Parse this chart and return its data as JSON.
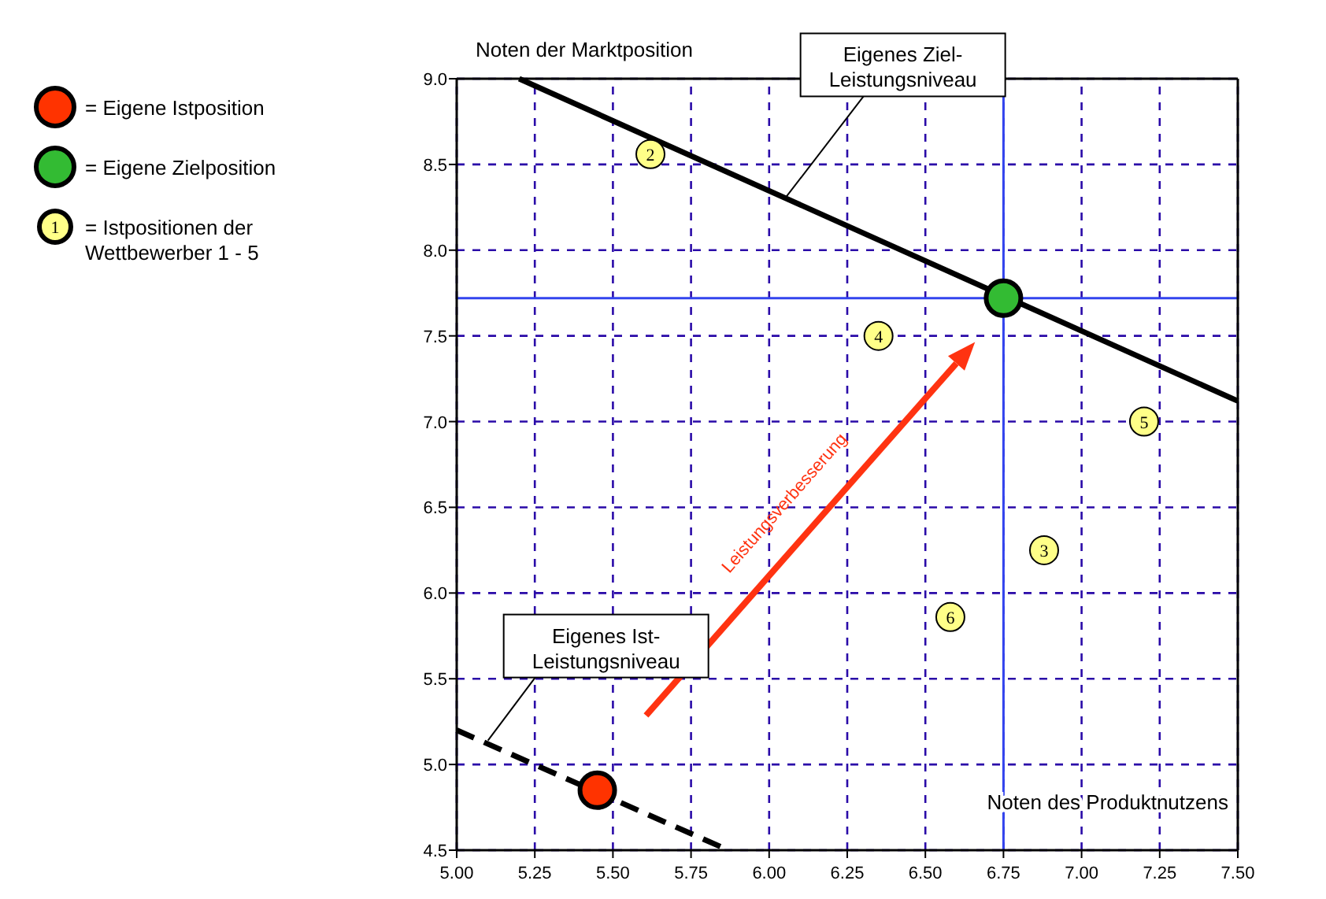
{
  "chart_data": {
    "type": "scatter",
    "xlabel": "Noten des Produktnutzens",
    "ylabel": "Noten der Marktposition",
    "xlim": [
      5.0,
      7.5
    ],
    "ylim": [
      4.5,
      9.0
    ],
    "xticks": [
      {
        "value": 5.0,
        "label": "5.00"
      },
      {
        "value": 5.25,
        "label": "5.25"
      },
      {
        "value": 5.5,
        "label": "5.50"
      },
      {
        "value": 5.75,
        "label": "5.75"
      },
      {
        "value": 6.0,
        "label": "6.00"
      },
      {
        "value": 6.25,
        "label": "6.25"
      },
      {
        "value": 6.5,
        "label": "6.50"
      },
      {
        "value": 6.75,
        "label": "6.75"
      },
      {
        "value": 7.0,
        "label": "7.00"
      },
      {
        "value": 7.25,
        "label": "7.25"
      },
      {
        "value": 7.5,
        "label": "7.50"
      }
    ],
    "yticks": [
      {
        "value": 4.5,
        "label": "4.5"
      },
      {
        "value": 5.0,
        "label": "5.0"
      },
      {
        "value": 5.5,
        "label": "5.5"
      },
      {
        "value": 6.0,
        "label": "6.0"
      },
      {
        "value": 6.5,
        "label": "6.5"
      },
      {
        "value": 7.0,
        "label": "7.0"
      },
      {
        "value": 7.5,
        "label": "7.5"
      },
      {
        "value": 8.0,
        "label": "8.0"
      },
      {
        "value": 8.5,
        "label": "8.5"
      },
      {
        "value": 9.0,
        "label": "9.0"
      }
    ],
    "grid": true,
    "legend": "left",
    "marker": "circle",
    "series": [
      {
        "name": "= Eigene Istposition",
        "color": "#ff3300",
        "x": [
          5.45
        ],
        "values": [
          4.85
        ]
      },
      {
        "name": "= Eigene Zielposition",
        "color": "#33bb33",
        "x": [
          6.75
        ],
        "values": [
          7.72
        ]
      },
      {
        "name": "= Istpositionen der Wettbewerber 1 - 5",
        "color": "#ffff88",
        "x": [
          5.62,
          6.35,
          7.2,
          6.88,
          6.58
        ],
        "values": [
          8.56,
          7.5,
          7.0,
          6.25,
          5.86
        ]
      },
      {
        "type": "line",
        "color": "#000000",
        "x": [
          5.2,
          7.5
        ],
        "values": [
          9.0,
          7.12
        ],
        "line_style": "solid",
        "marker": "none"
      },
      {
        "type": "line",
        "color": "#000000",
        "x": [
          5.0,
          5.87
        ],
        "values": [
          5.2,
          4.5
        ],
        "line_style": "dashed",
        "marker": "none"
      }
    ],
    "ref_lines": [
      {
        "axis": "x",
        "value": 6.75,
        "color": "#3344ee"
      },
      {
        "axis": "y",
        "value": 7.72,
        "color": "#3344ee"
      }
    ],
    "annotations": [
      {
        "text": "Eigenes Ziel-\nLeistungsniveau",
        "x": 6.05,
        "y": 8.3
      },
      {
        "text": "Eigenes Ist-\nLeistungsniveau",
        "x": 5.1,
        "y": 5.14
      },
      {
        "text": "2",
        "x": 5.62,
        "y": 8.56
      },
      {
        "text": "4",
        "x": 6.35,
        "y": 7.5
      },
      {
        "text": "5",
        "x": 7.2,
        "y": 7.0
      },
      {
        "text": "3",
        "x": 6.88,
        "y": 6.25
      },
      {
        "text": "6",
        "x": 6.58,
        "y": 5.86
      },
      "Leistungsverbesserung",
      "1"
    ]
  }
}
